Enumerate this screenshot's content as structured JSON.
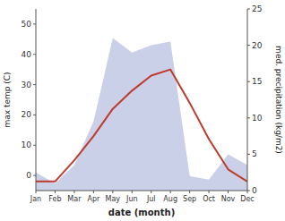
{
  "chart_data": {
    "type": "line",
    "xlabel": "date (month)",
    "ylabel": "max temp (C)",
    "y2label": "med. precipitation (kg/m2)",
    "categories": [
      "Jan",
      "Feb",
      "Mar",
      "Apr",
      "May",
      "Jun",
      "Jul",
      "Aug",
      "Sep",
      "Oct",
      "Nov",
      "Dec"
    ],
    "series": [
      {
        "type": "area",
        "axis": "y2",
        "color": "#b8c0e0",
        "values": [
          2.5,
          1.0,
          3.5,
          9.5,
          21.0,
          19.0,
          20.0,
          20.5,
          2.0,
          1.5,
          5.0,
          3.5
        ]
      },
      {
        "type": "line",
        "color": "#c0392b",
        "values": [
          -2,
          -2,
          5,
          13,
          22,
          28,
          33,
          35,
          24,
          12,
          2,
          -2
        ]
      }
    ],
    "ylim": [
      -5,
      55
    ],
    "yticks": [
      0,
      10,
      20,
      30,
      40,
      50
    ],
    "y2lim": [
      0,
      25
    ],
    "y2ticks": [
      0,
      5,
      10,
      15,
      20,
      25
    ],
    "grid": false
  }
}
